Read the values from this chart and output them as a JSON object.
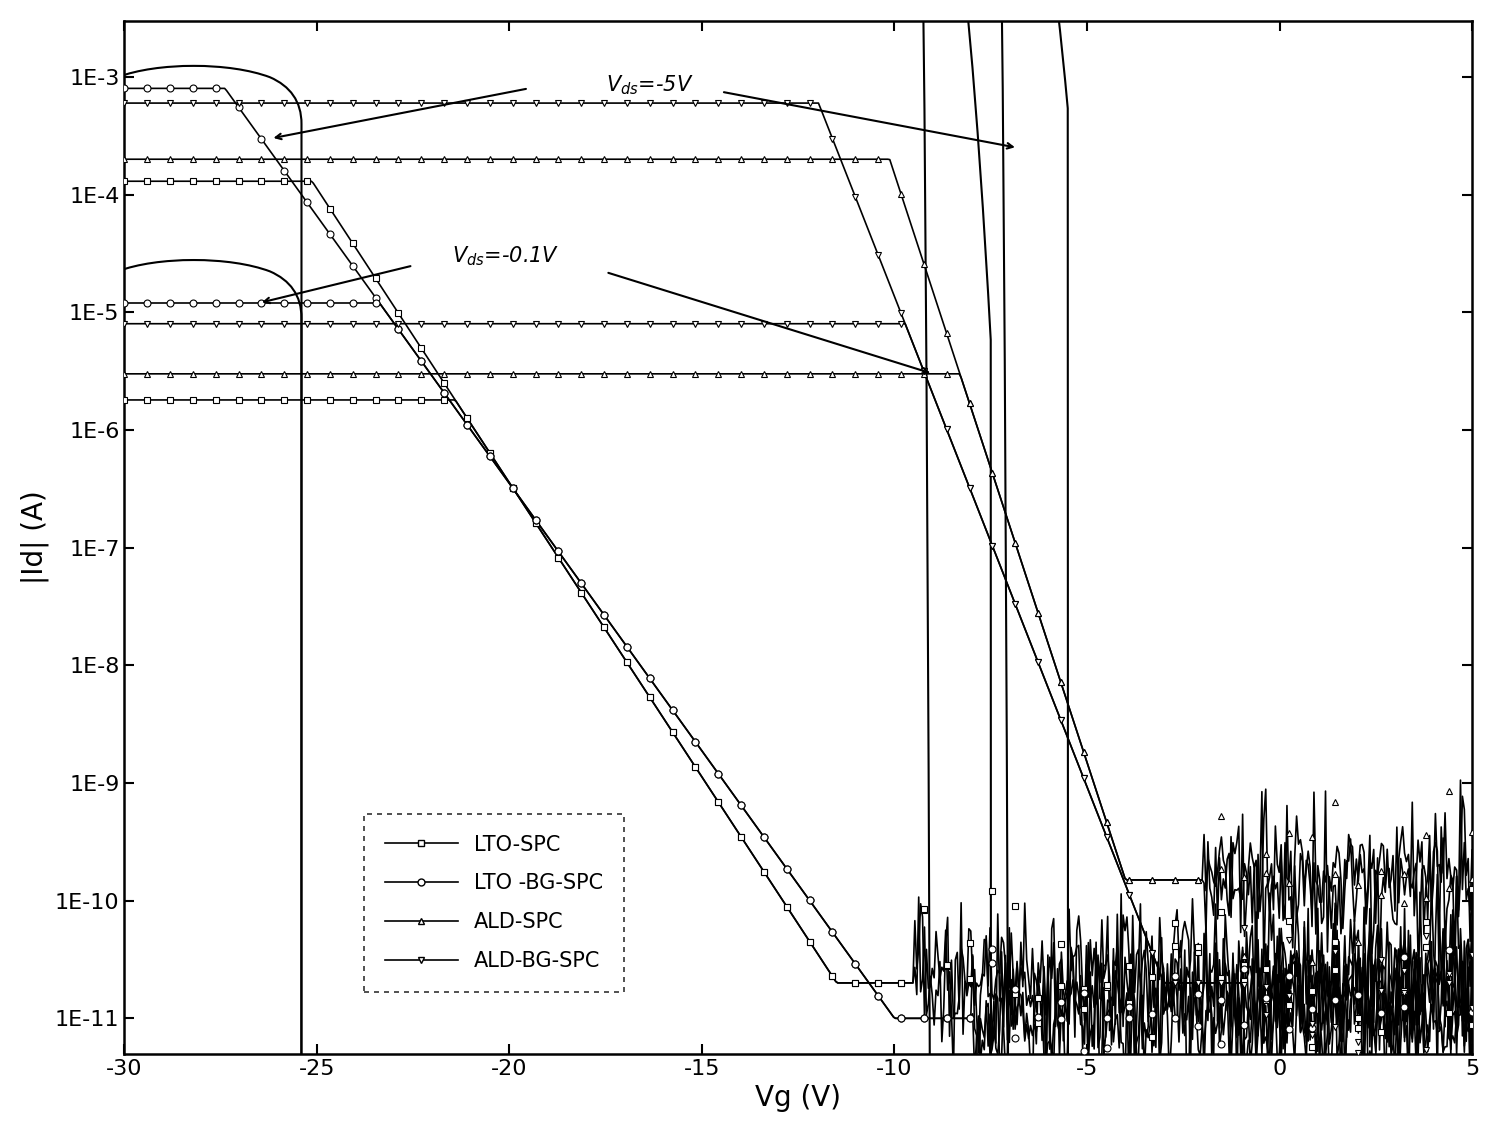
{
  "xlabel": "Vg (V)",
  "ylabel": "|Id| (A)",
  "xlim": [
    -30,
    5
  ],
  "ylim": [
    5e-12,
    0.003
  ],
  "series": [
    "LTO-SPC",
    "LTO -BG-SPC",
    "ALD-SPC",
    "ALD-BG-SPC"
  ],
  "markers": [
    "s",
    "o",
    "^",
    "v"
  ],
  "linestyles": [
    "-",
    "-",
    "-",
    "-"
  ],
  "bg_color": "white",
  "marker_size": 5,
  "linewidth": 1.2,
  "vds5_params": [
    {
      "vth": -11.5,
      "ss": 2.0,
      "ion": 0.00013,
      "ioff": 2e-11,
      "ion_flat": 0.00015
    },
    {
      "vth": -10.0,
      "ss": 2.2,
      "ion": 0.0008,
      "ioff": 1e-11,
      "ion_flat": 0.0009
    },
    {
      "vth": -4.0,
      "ss": 1.0,
      "ion": 0.0002,
      "ioff": 1.5e-10,
      "ion_flat": 0.00025
    },
    {
      "vth": -3.0,
      "ss": 1.2,
      "ion": 0.0006,
      "ioff": 2e-11,
      "ion_flat": 0.0007
    }
  ],
  "vds01_params": [
    {
      "vth": -11.5,
      "ss": 2.0,
      "ion": 1.8e-06,
      "ioff": 2e-11,
      "ion_flat": 2e-06
    },
    {
      "vth": -10.0,
      "ss": 2.2,
      "ion": 1.2e-05,
      "ioff": 1e-11,
      "ion_flat": 1.3e-05
    },
    {
      "vth": -4.0,
      "ss": 1.0,
      "ion": 3e-06,
      "ioff": 1.5e-10,
      "ion_flat": 3.5e-06
    },
    {
      "vth": -3.0,
      "ss": 1.2,
      "ion": 8e-06,
      "ioff": 2e-11,
      "ion_flat": 9e-06
    }
  ],
  "annotation_vds5_text": "$V_{ds}$=-5V",
  "annotation_vds01_text": "$V_{ds}$=-0.1V",
  "xticks": [
    -30,
    -25,
    -20,
    -15,
    -10,
    -5,
    0,
    5
  ],
  "ytick_vals": [
    -11,
    -10,
    -9,
    -8,
    -7,
    -6,
    -5,
    -4,
    -3
  ],
  "ytick_labels": [
    "1E-11",
    "1E-10",
    "1E-9",
    "1E-8",
    "1E-7",
    "1E-6",
    "1E-5",
    "1E-4",
    "1E-3"
  ]
}
